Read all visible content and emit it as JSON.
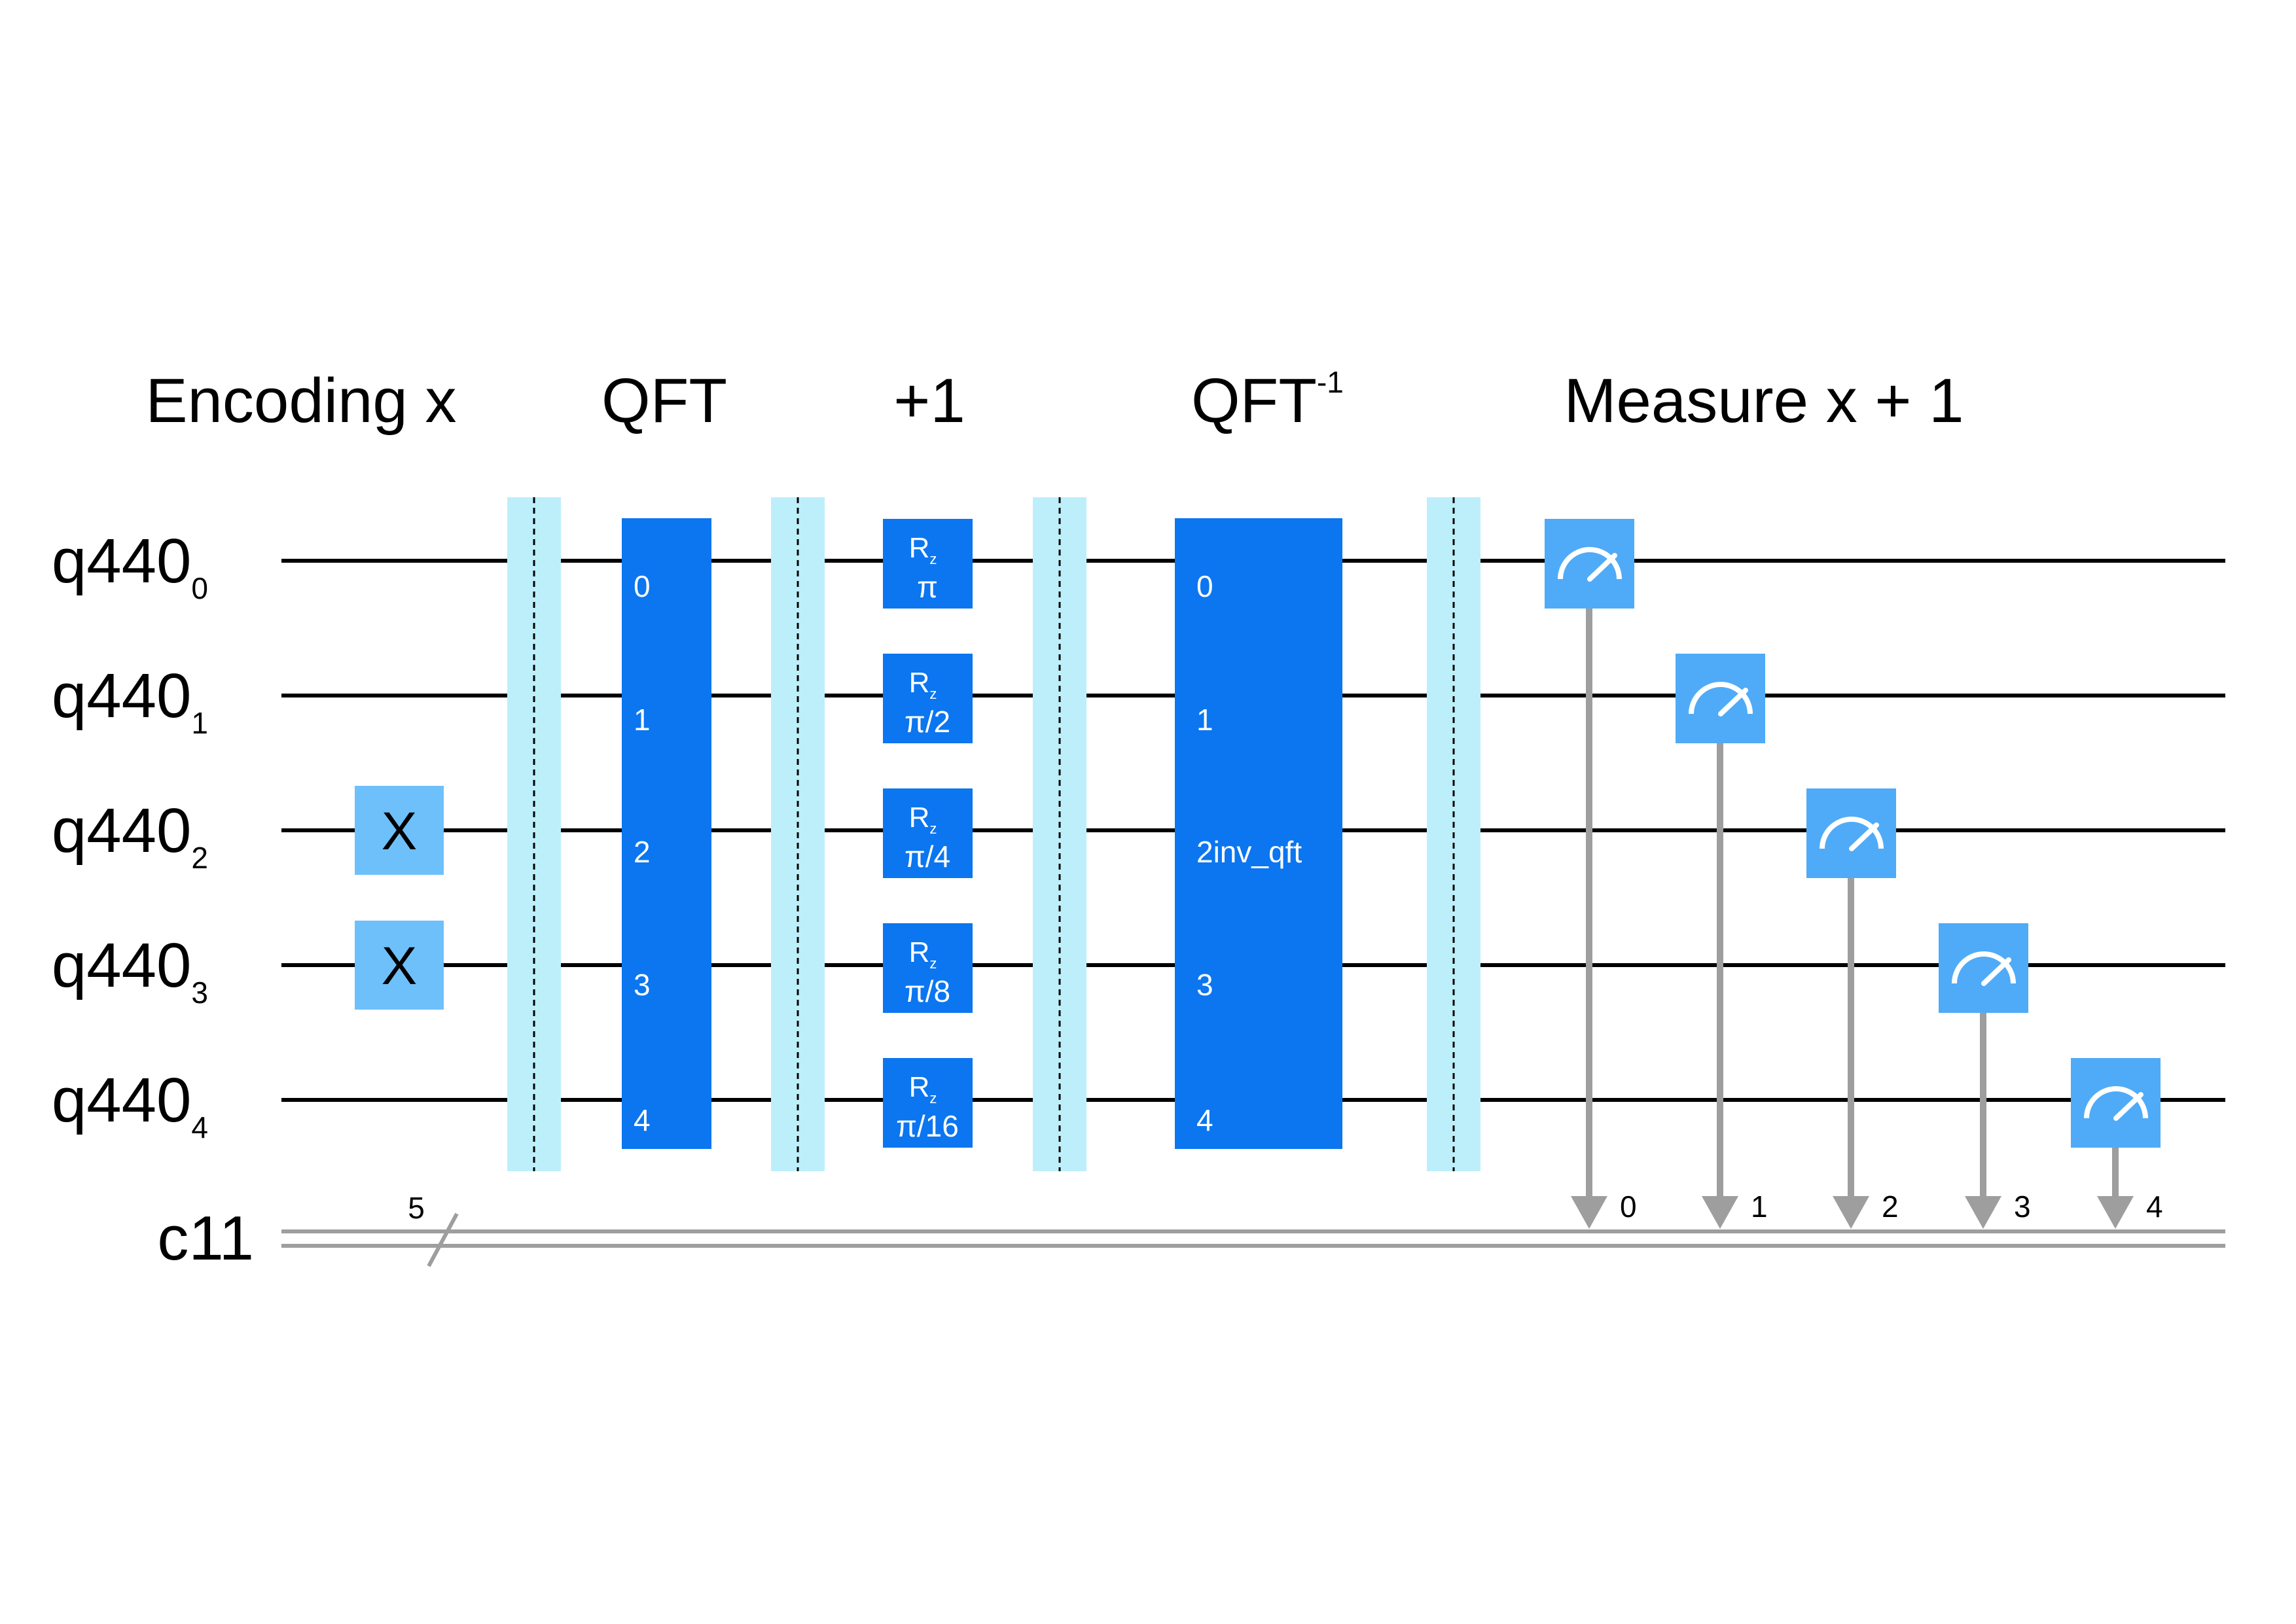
{
  "sections": {
    "encoding": "Encoding x",
    "qft": "QFT",
    "plus_one": "+1",
    "qft_inv_base": "QFT",
    "qft_inv_sup": "-1",
    "measure": "Measure x + 1"
  },
  "quantum_register": {
    "name": "q440",
    "qubits": [
      "0",
      "1",
      "2",
      "3",
      "4"
    ]
  },
  "classical_register": {
    "name": "c11",
    "width_label": "5"
  },
  "x_gates": [
    {
      "label": "X",
      "qubit": 2
    },
    {
      "label": "X",
      "qubit": 3
    }
  ],
  "qft_block": {
    "ports": [
      "0",
      "1",
      "2",
      "3",
      "4"
    ]
  },
  "rz_gates": [
    {
      "name": "R",
      "sub": "z",
      "param": "π"
    },
    {
      "name": "R",
      "sub": "z",
      "param": "π/2"
    },
    {
      "name": "R",
      "sub": "z",
      "param": "π/4"
    },
    {
      "name": "R",
      "sub": "z",
      "param": "π/8"
    },
    {
      "name": "R",
      "sub": "z",
      "param": "π/16"
    }
  ],
  "inv_qft_block": {
    "ports": [
      "0",
      "1",
      "2inv_qft",
      "3",
      "4"
    ]
  },
  "measurements": [
    {
      "qubit": 0,
      "clbit": "0"
    },
    {
      "qubit": 1,
      "clbit": "1"
    },
    {
      "qubit": 2,
      "clbit": "2"
    },
    {
      "qubit": 3,
      "clbit": "3"
    },
    {
      "qubit": 4,
      "clbit": "4"
    }
  ],
  "colors": {
    "block": "#0b76f0",
    "x_gate": "#6ec0fb",
    "measure": "#4fabf7",
    "barrier": "#bdeffa",
    "classical_wire": "#9e9e9e",
    "wire": "#000000"
  }
}
